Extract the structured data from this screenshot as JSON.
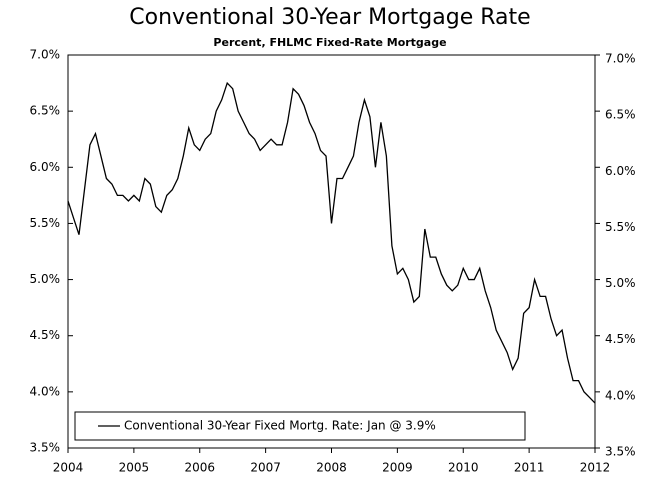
{
  "chart_data": {
    "type": "line",
    "title": "Conventional 30-Year Mortgage Rate",
    "subtitle": "Percent, FHLMC Fixed-Rate Mortgage",
    "x": [
      2004,
      2004.083,
      2004.167,
      2004.25,
      2004.333,
      2004.417,
      2004.5,
      2004.583,
      2004.667,
      2004.75,
      2004.833,
      2004.917,
      2005,
      2005.083,
      2005.167,
      2005.25,
      2005.333,
      2005.417,
      2005.5,
      2005.583,
      2005.667,
      2005.75,
      2005.833,
      2005.917,
      2006,
      2006.083,
      2006.167,
      2006.25,
      2006.333,
      2006.417,
      2006.5,
      2006.583,
      2006.667,
      2006.75,
      2006.833,
      2006.917,
      2007,
      2007.083,
      2007.167,
      2007.25,
      2007.333,
      2007.417,
      2007.5,
      2007.583,
      2007.667,
      2007.75,
      2007.833,
      2007.917,
      2008,
      2008.083,
      2008.167,
      2008.25,
      2008.333,
      2008.417,
      2008.5,
      2008.583,
      2008.667,
      2008.75,
      2008.833,
      2008.917,
      2009,
      2009.083,
      2009.167,
      2009.25,
      2009.333,
      2009.417,
      2009.5,
      2009.583,
      2009.667,
      2009.75,
      2009.833,
      2009.917,
      2010,
      2010.083,
      2010.167,
      2010.25,
      2010.333,
      2010.417,
      2010.5,
      2010.583,
      2010.667,
      2010.75,
      2010.833,
      2010.917,
      2011,
      2011.083,
      2011.167,
      2011.25,
      2011.333,
      2011.417,
      2011.5,
      2011.583,
      2011.667,
      2011.75,
      2011.833,
      2011.917,
      2012
    ],
    "series": [
      {
        "name": "Conventional 30-Year Fixed Mortg. Rate: Jan @ 3.9%",
        "color": "#000000",
        "values": [
          5.7,
          5.55,
          5.4,
          5.8,
          6.2,
          6.3,
          6.1,
          5.9,
          5.85,
          5.75,
          5.75,
          5.7,
          5.75,
          5.7,
          5.9,
          5.85,
          5.65,
          5.6,
          5.75,
          5.8,
          5.9,
          6.1,
          6.35,
          6.2,
          6.15,
          6.25,
          6.3,
          6.5,
          6.6,
          6.75,
          6.7,
          6.5,
          6.4,
          6.3,
          6.25,
          6.15,
          6.2,
          6.25,
          6.2,
          6.2,
          6.4,
          6.7,
          6.65,
          6.55,
          6.4,
          6.3,
          6.15,
          6.1,
          5.5,
          5.9,
          5.9,
          6.0,
          6.1,
          6.4,
          6.6,
          6.45,
          6.0,
          6.4,
          6.1,
          5.3,
          5.05,
          5.1,
          5.0,
          4.8,
          4.85,
          5.45,
          5.2,
          5.2,
          5.05,
          4.95,
          4.9,
          4.95,
          5.1,
          5.0,
          5.0,
          5.1,
          4.9,
          4.75,
          4.55,
          4.45,
          4.35,
          4.2,
          4.3,
          4.7,
          4.75,
          5.0,
          4.85,
          4.85,
          4.65,
          4.5,
          4.55,
          4.3,
          4.1,
          4.1,
          4.0,
          3.95,
          3.9
        ]
      }
    ],
    "xlim": [
      2004,
      2012
    ],
    "xticks": [
      2004,
      2005,
      2006,
      2007,
      2008,
      2009,
      2010,
      2011,
      2012
    ],
    "ylim": [
      3.5,
      7.0
    ],
    "yticks": [
      {
        "value": 3.5,
        "label": "3.5%"
      },
      {
        "value": 4.0,
        "label": "4.0%"
      },
      {
        "value": 4.5,
        "label": "4.5%"
      },
      {
        "value": 5.0,
        "label": "5.0%"
      },
      {
        "value": 5.5,
        "label": "5.5%"
      },
      {
        "value": 6.0,
        "label": "6.0%"
      },
      {
        "value": 6.5,
        "label": "6.5%"
      },
      {
        "value": 7.0,
        "label": "7.0%"
      }
    ],
    "y2lim": [
      3.5,
      7.0
    ],
    "y2ticks": [
      {
        "value": 3.5,
        "label": "3.5%"
      },
      {
        "value": 4.0,
        "label": "4.0%"
      },
      {
        "value": 4.5,
        "label": "4.5%"
      },
      {
        "value": 5.0,
        "label": "5.0%"
      },
      {
        "value": 5.5,
        "label": "5.5%"
      },
      {
        "value": 6.0,
        "label": "6.0%"
      },
      {
        "value": 6.5,
        "label": "6.5%"
      },
      {
        "value": 7.0,
        "label": "7.0%"
      }
    ],
    "grid": false,
    "legend": "bottom-left"
  }
}
